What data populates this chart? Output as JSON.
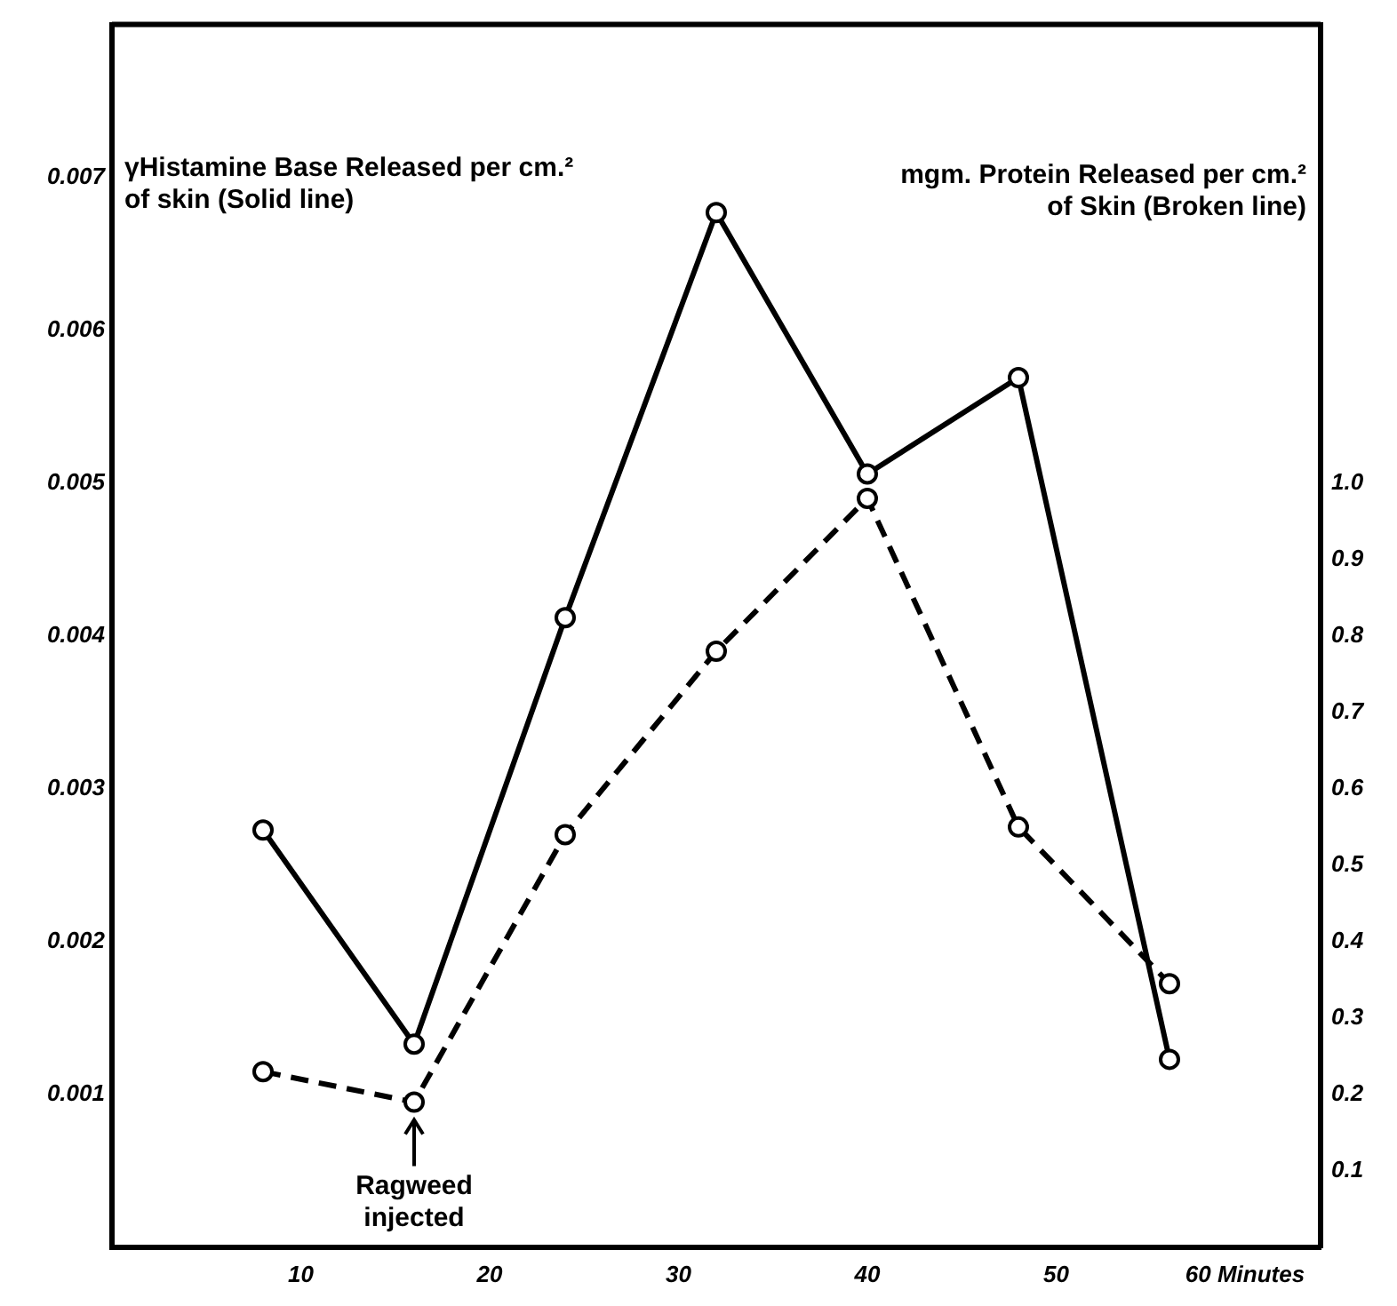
{
  "chart_data": {
    "type": "line",
    "ylabel": "γHistamine Base Released per cm.² of skin (Solid line)",
    "y2label": "mgm. Protein Released per cm.² of Skin (Broken line)",
    "x": [
      8,
      16,
      24,
      32,
      40,
      48,
      56
    ],
    "series": [
      {
        "color": "#000000",
        "line_style": "solid",
        "values": [
          0.00273,
          0.00133,
          0.00412,
          0.00677,
          0.00506,
          0.00569,
          0.00123
        ]
      },
      {
        "color": "#000000",
        "line_style": "dashed",
        "axis": "y2",
        "values": [
          0.23,
          0.19,
          0.54,
          0.78,
          0.98,
          0.55,
          0.345
        ]
      }
    ],
    "xlim": [
      0,
      64
    ],
    "xticks": [
      10,
      20,
      30,
      40,
      50,
      {
        "value": 60,
        "label": "60 Minutes"
      }
    ],
    "ylim": [
      0,
      0.008
    ],
    "yticks": [
      0.001,
      0.002,
      0.003,
      0.004,
      0.005,
      0.006,
      0.007
    ],
    "y2lim": [
      0,
      1.6
    ],
    "y2ticks": [
      0.1,
      0.2,
      0.3,
      0.4,
      0.5,
      0.6,
      0.7,
      0.8,
      0.9,
      {
        "value": 1,
        "label": "1.0"
      }
    ],
    "annotations": [
      {
        "text": "Ragweed injected",
        "x": 16,
        "y": 0.00095
      }
    ],
    "marker": "circle",
    "grid": false,
    "legend": false
  }
}
